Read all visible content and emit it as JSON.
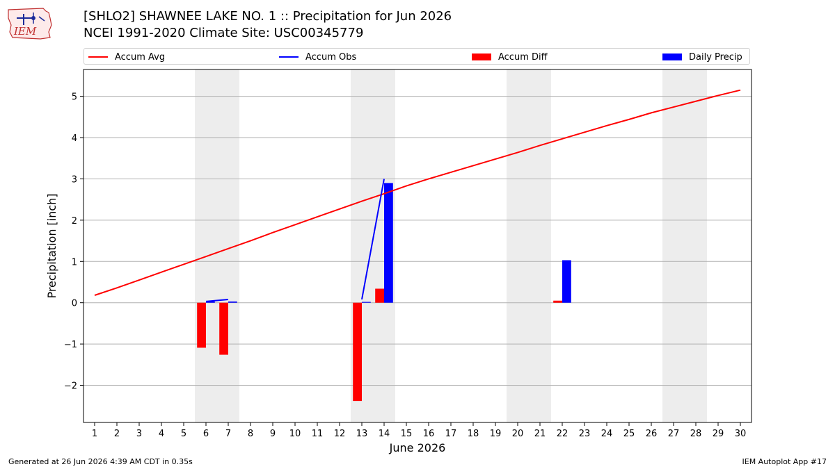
{
  "header": {
    "title": "[SHLO2] SHAWNEE LAKE NO. 1 :: Precipitation for Jun 2026",
    "subtitle": "NCEI 1991-2020 Climate Site: USC00345779",
    "logo_text": "IEM"
  },
  "footer": {
    "generated": "Generated at 26 Jun 2026 4:39 AM CDT in 0.35s",
    "app": "IEM Autoplot App #17"
  },
  "colors": {
    "accum_avg": "#ff0000",
    "accum_obs": "#0000ff",
    "accum_diff": "#ff0000",
    "daily_precip": "#0000ff",
    "weekend_shade": "#ededed",
    "grid": "#b0b0b0"
  },
  "chart_data": {
    "type": "bar",
    "xlabel": "June 2026",
    "ylabel": "Precipitation [inch]",
    "xlim": [
      0.5,
      30.5
    ],
    "ylim": [
      -2.9,
      5.65
    ],
    "yticks": [
      -2,
      -1,
      0,
      1,
      2,
      3,
      4,
      5
    ],
    "ytick_labels": [
      "−2",
      "−1",
      "0",
      "1",
      "2",
      "3",
      "4",
      "5"
    ],
    "xticks": [
      1,
      2,
      3,
      4,
      5,
      6,
      7,
      8,
      9,
      10,
      11,
      12,
      13,
      14,
      15,
      16,
      17,
      18,
      19,
      20,
      21,
      22,
      23,
      24,
      25,
      26,
      27,
      28,
      29,
      30
    ],
    "grid": "horizontal",
    "legend_position": "top",
    "weekend_spans": [
      [
        5.5,
        7.5
      ],
      [
        12.5,
        14.5
      ],
      [
        19.5,
        21.5
      ],
      [
        26.5,
        28.5
      ]
    ],
    "series": [
      {
        "name": "Accum Avg",
        "kind": "line",
        "x": [
          1,
          2,
          3,
          4,
          5,
          6,
          7,
          8,
          9,
          10,
          11,
          12,
          13,
          14,
          15,
          16,
          17,
          18,
          19,
          20,
          21,
          22,
          23,
          24,
          25,
          26,
          27,
          28,
          29,
          30
        ],
        "values": [
          0.18,
          0.36,
          0.55,
          0.74,
          0.93,
          1.12,
          1.31,
          1.5,
          1.7,
          1.89,
          2.08,
          2.27,
          2.46,
          2.64,
          2.83,
          3.0,
          3.16,
          3.32,
          3.48,
          3.64,
          3.81,
          3.97,
          4.13,
          4.29,
          4.44,
          4.6,
          4.74,
          4.88,
          5.02,
          5.15
        ]
      },
      {
        "name": "Accum Obs",
        "kind": "line",
        "segments": [
          {
            "x": [
              6,
              7
            ],
            "values": [
              0.03,
              0.08
            ]
          },
          {
            "x": [
              13,
              14
            ],
            "values": [
              0.08,
              3.0
            ]
          }
        ]
      },
      {
        "name": "Accum Diff",
        "kind": "bar",
        "x": [
          6,
          7,
          13,
          14,
          22
        ],
        "values": [
          -1.09,
          -1.26,
          -2.38,
          0.34,
          0.05
        ]
      },
      {
        "name": "Daily Precip",
        "kind": "bar",
        "x": [
          6,
          7,
          13,
          14,
          22
        ],
        "values": [
          0.03,
          0.03,
          0.02,
          2.9,
          1.03
        ]
      }
    ]
  }
}
